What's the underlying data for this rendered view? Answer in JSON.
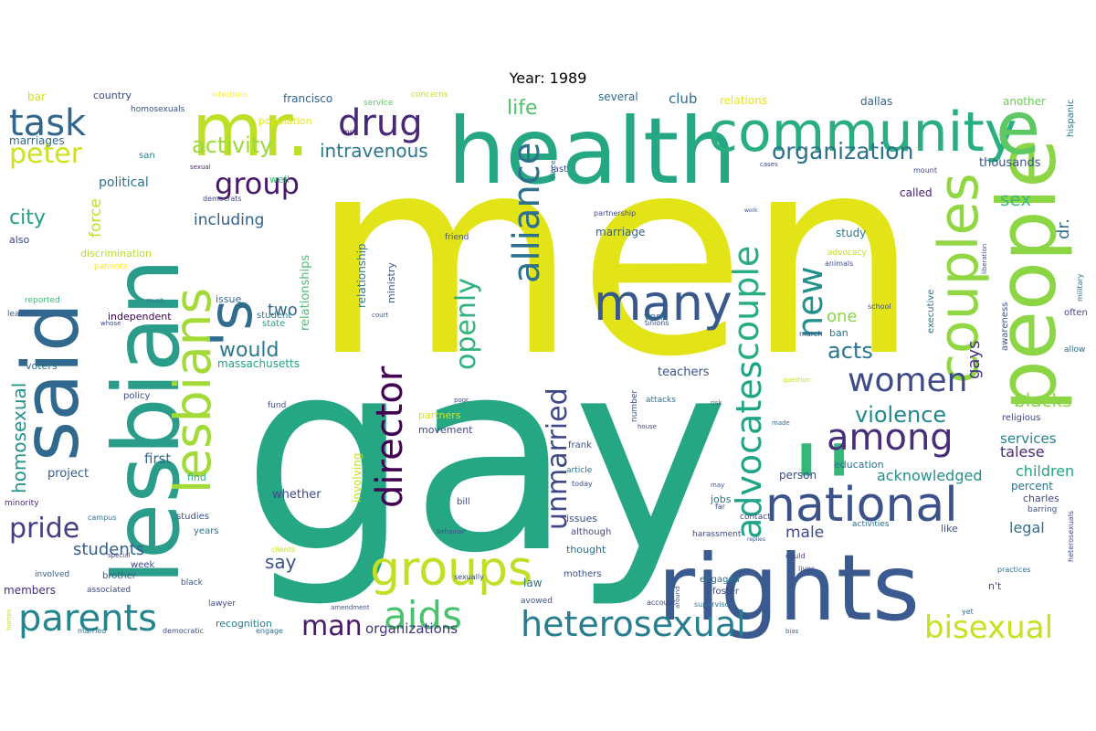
{
  "title": "Year: 1989",
  "palette": [
    "#440154",
    "#46337e",
    "#365c8d",
    "#277f8e",
    "#1fa187",
    "#4ac16d",
    "#a0da39",
    "#fde725"
  ],
  "words": [
    {
      "text": "men",
      "c": "#e3e418"
    },
    {
      "text": "gay",
      "c": "#26a784"
    },
    {
      "text": "lesbian",
      "c": "#2a9c8a"
    },
    {
      "text": "said",
      "c": "#31688e"
    },
    {
      "text": "health",
      "c": "#26a784"
    },
    {
      "text": "rights",
      "c": "#3b5a8f"
    },
    {
      "text": "people",
      "c": "#8cd646"
    },
    {
      "text": "community",
      "c": "#29af7f"
    },
    {
      "text": "e",
      "c": "#5ec962"
    },
    {
      "text": "mr.",
      "c": "#bddf26"
    },
    {
      "text": "'s",
      "c": "#2f6c8e"
    },
    {
      "text": "couples",
      "c": "#90d743"
    },
    {
      "text": "lesbians",
      "c": "#a2da37"
    },
    {
      "text": "national",
      "c": "#3b528b"
    },
    {
      "text": "groups",
      "c": "#c0df25"
    },
    {
      "text": "''",
      "c": "#35b779"
    },
    {
      "text": "many",
      "c": "#38598c"
    },
    {
      "text": "among",
      "c": "#472d7b"
    },
    {
      "text": "heterosexual",
      "c": "#287d8e"
    },
    {
      "text": "task",
      "c": "#31668e"
    },
    {
      "text": "parents",
      "c": "#25858e"
    },
    {
      "text": "aids",
      "c": "#4ac16d"
    },
    {
      "text": "drug",
      "c": "#482878"
    },
    {
      "text": "director",
      "c": "#440154"
    },
    {
      "text": "alliance",
      "c": "#2c728e"
    },
    {
      "text": "advocates",
      "c": "#20a486"
    },
    {
      "text": "couple",
      "c": "#27ad81"
    },
    {
      "text": "women",
      "c": "#3e4a89"
    },
    {
      "text": "bisexual",
      "c": "#c8e020"
    },
    {
      "text": "new",
      "c": "#21918c"
    },
    {
      "text": "man",
      "c": "#481a6c"
    },
    {
      "text": "peter",
      "c": "#d0e11c"
    },
    {
      "text": "group",
      "c": "#48186a"
    },
    {
      "text": "organization",
      "c": "#2d708e"
    },
    {
      "text": "unmarried",
      "c": "#3e4989"
    },
    {
      "text": "openly",
      "c": "#2fb47c"
    },
    {
      "text": "pride",
      "c": "#423f85"
    },
    {
      "text": "violence",
      "c": "#23898e"
    },
    {
      "text": "acts",
      "c": "#2a768e"
    },
    {
      "text": "activity",
      "c": "#9bd93c"
    },
    {
      "text": "intravenous",
      "c": "#2a788e"
    },
    {
      "text": "homosexual",
      "c": "#1f958b"
    },
    {
      "text": "life",
      "c": "#4ec36b"
    },
    {
      "text": "sex",
      "c": "#3bbb75"
    },
    {
      "text": "blacks",
      "c": "#8bd646"
    },
    {
      "text": "gays",
      "c": "#46327e"
    },
    {
      "text": "city",
      "c": "#1fa088"
    },
    {
      "text": "would",
      "c": "#2a788e"
    },
    {
      "text": "students",
      "c": "#34608d"
    },
    {
      "text": "including",
      "c": "#33638d"
    },
    {
      "text": "force",
      "c": "#c2df23"
    },
    {
      "text": "two",
      "c": "#31688e"
    },
    {
      "text": "one",
      "c": "#8bd646"
    },
    {
      "text": "say",
      "c": "#3b528b"
    },
    {
      "text": "male",
      "c": "#3e4989"
    },
    {
      "text": "legal",
      "c": "#2c728e"
    },
    {
      "text": "acknowledged",
      "c": "#21918c"
    },
    {
      "text": "talese",
      "c": "#482878"
    },
    {
      "text": "children",
      "c": "#20a386"
    },
    {
      "text": "services",
      "c": "#26828e"
    },
    {
      "text": "political",
      "c": "#2d718e"
    },
    {
      "text": "club",
      "c": "#2d708e"
    },
    {
      "text": "dr.",
      "c": "#2e6f8e"
    },
    {
      "text": "organizations",
      "c": "#46337e"
    },
    {
      "text": "first",
      "c": "#31688e"
    },
    {
      "text": "project",
      "c": "#355f8d"
    },
    {
      "text": "relationships",
      "c": "#4ac16d"
    },
    {
      "text": "relationship",
      "c": "#287c8e"
    },
    {
      "text": "ministry",
      "c": "#39568c"
    },
    {
      "text": "involving",
      "c": "#bddf26"
    },
    {
      "text": "whether",
      "c": "#3e4a89"
    },
    {
      "text": "marriage",
      "c": "#33638d"
    },
    {
      "text": "study",
      "c": "#29798e"
    },
    {
      "text": "called",
      "c": "#482071"
    },
    {
      "text": "thousands",
      "c": "#3b528b"
    },
    {
      "text": "bar",
      "c": "#d2e21b"
    },
    {
      "text": "marriages",
      "c": "#306a8e"
    },
    {
      "text": "country",
      "c": "#3f4788"
    },
    {
      "text": "francisco",
      "c": "#33638d"
    },
    {
      "text": "several",
      "c": "#2e6e8e"
    },
    {
      "text": "dallas",
      "c": "#32648e"
    },
    {
      "text": "another",
      "c": "#6ccd5a"
    },
    {
      "text": "hispanic",
      "c": "#2c728e"
    },
    {
      "text": "relations",
      "c": "#e5e419"
    },
    {
      "text": "concerns",
      "c": "#c8e020"
    },
    {
      "text": "service",
      "c": "#5cc863"
    },
    {
      "text": "infections",
      "c": "#fde725"
    },
    {
      "text": "homosexuals",
      "c": "#3b528b"
    },
    {
      "text": "population",
      "c": "#e2e418"
    },
    {
      "text": "ms.",
      "c": "#46085c"
    },
    {
      "text": "san",
      "c": "#26828e"
    },
    {
      "text": "sexual",
      "c": "#482878"
    },
    {
      "text": "well",
      "c": "#3dbc74"
    },
    {
      "text": "democrats",
      "c": "#404688"
    },
    {
      "text": "also",
      "c": "#3e4989"
    },
    {
      "text": "discrimination",
      "c": "#b5de2b"
    },
    {
      "text": "patients",
      "c": "#fde725"
    },
    {
      "text": "much",
      "c": "#2c728e"
    },
    {
      "text": "reported",
      "c": "#3bbb75"
    },
    {
      "text": "leaders",
      "c": "#375b8d"
    },
    {
      "text": "whose",
      "c": "#3e4989"
    },
    {
      "text": "independent",
      "c": "#440154"
    },
    {
      "text": "issue",
      "c": "#31688e"
    },
    {
      "text": "student",
      "c": "#287d8e"
    },
    {
      "text": "state",
      "c": "#1fa187"
    },
    {
      "text": "massachusetts",
      "c": "#20a486"
    },
    {
      "text": "voters",
      "c": "#2c738e"
    },
    {
      "text": "policy",
      "c": "#3e4989"
    },
    {
      "text": "fund",
      "c": "#3e4989"
    },
    {
      "text": "partners",
      "c": "#d8e219"
    },
    {
      "text": "movement",
      "c": "#3e4989"
    },
    {
      "text": "find",
      "c": "#29af7f"
    },
    {
      "text": "minority",
      "c": "#472c7a"
    },
    {
      "text": "campus",
      "c": "#2c728e"
    },
    {
      "text": "studies",
      "c": "#3b528b"
    },
    {
      "text": "years",
      "c": "#2c738e"
    },
    {
      "text": "special",
      "c": "#3e4989"
    },
    {
      "text": "week",
      "c": "#3e4989"
    },
    {
      "text": "brother",
      "c": "#355f8d"
    },
    {
      "text": "involved",
      "c": "#355f8d"
    },
    {
      "text": "associated",
      "c": "#3e4989"
    },
    {
      "text": "black",
      "c": "#3b528b"
    },
    {
      "text": "members",
      "c": "#472d7b"
    },
    {
      "text": "lawyer",
      "c": "#3e4989"
    },
    {
      "text": "recognition",
      "c": "#287d8e"
    },
    {
      "text": "engage",
      "c": "#2c728e"
    },
    {
      "text": "democratic",
      "c": "#3b528b"
    },
    {
      "text": "married",
      "c": "#2c728e"
    },
    {
      "text": "homes",
      "c": "#c8e020"
    },
    {
      "text": "amendment",
      "c": "#3b528b"
    },
    {
      "text": "sexually",
      "c": "#3e4989"
    },
    {
      "text": "clients",
      "c": "#c8e020"
    },
    {
      "text": "bill",
      "c": "#3e4989"
    },
    {
      "text": "issues",
      "c": "#3b528b"
    },
    {
      "text": "although",
      "c": "#3e4989"
    },
    {
      "text": "thought",
      "c": "#2c728e"
    },
    {
      "text": "mothers",
      "c": "#3b528b"
    },
    {
      "text": "law",
      "c": "#2c728e"
    },
    {
      "text": "avowed",
      "c": "#3b528b"
    },
    {
      "text": "york",
      "c": "#2c728e"
    },
    {
      "text": "unions",
      "c": "#3e4989"
    },
    {
      "text": "teachers",
      "c": "#3b528b"
    },
    {
      "text": "march",
      "c": "#3e4989"
    },
    {
      "text": "ban",
      "c": "#2c728e"
    },
    {
      "text": "school",
      "c": "#3e4989"
    },
    {
      "text": "advocacy",
      "c": "#c8e020"
    },
    {
      "text": "animals",
      "c": "#3b528b"
    },
    {
      "text": "executive",
      "c": "#2c728e"
    },
    {
      "text": "awareness",
      "c": "#3b528b"
    },
    {
      "text": "often",
      "c": "#3e4989"
    },
    {
      "text": "allow",
      "c": "#2c728e"
    },
    {
      "text": "friend",
      "c": "#3b528b"
    },
    {
      "text": "partnership",
      "c": "#3e4989"
    },
    {
      "text": "since",
      "c": "#2c728e"
    },
    {
      "text": "last",
      "c": "#3e4989"
    },
    {
      "text": "court",
      "c": "#3b528b"
    },
    {
      "text": "question",
      "c": "#c8e020"
    },
    {
      "text": "poor",
      "c": "#3e4989"
    },
    {
      "text": "number",
      "c": "#3b528b"
    },
    {
      "text": "attacks",
      "c": "#2c728e"
    },
    {
      "text": "house",
      "c": "#3e4989"
    },
    {
      "text": "risk",
      "c": "#3b528b"
    },
    {
      "text": "made",
      "c": "#2c728e"
    },
    {
      "text": "religious",
      "c": "#3e4989"
    },
    {
      "text": "frank",
      "c": "#3b528b"
    },
    {
      "text": "article",
      "c": "#2c728e"
    },
    {
      "text": "today",
      "c": "#3e4989"
    },
    {
      "text": "education",
      "c": "#2c728e"
    },
    {
      "text": "person",
      "c": "#3e4989"
    },
    {
      "text": "percent",
      "c": "#2c728e"
    },
    {
      "text": "charles",
      "c": "#3e4989"
    },
    {
      "text": "barring",
      "c": "#3b528b"
    },
    {
      "text": "heterosexuals",
      "c": "#3e4989"
    },
    {
      "text": "jobs",
      "c": "#2c728e"
    },
    {
      "text": "far",
      "c": "#3e4989"
    },
    {
      "text": "may",
      "c": "#3b528b"
    },
    {
      "text": "contact",
      "c": "#3e4989"
    },
    {
      "text": "activities",
      "c": "#2c728e"
    },
    {
      "text": "harassment",
      "c": "#3e4989"
    },
    {
      "text": "engaged",
      "c": "#2c728e"
    },
    {
      "text": "foster",
      "c": "#3e4989"
    },
    {
      "text": "like",
      "c": "#3b528b"
    },
    {
      "text": "could",
      "c": "#3e4989"
    },
    {
      "text": "practices",
      "c": "#2c728e"
    },
    {
      "text": "n't",
      "c": "#3e4989"
    },
    {
      "text": "use",
      "c": "#3b528b"
    },
    {
      "text": "yet",
      "c": "#2c728e"
    },
    {
      "text": "lives",
      "c": "#3e4989"
    },
    {
      "text": "replies",
      "c": "#3b528b"
    },
    {
      "text": "account",
      "c": "#3e4989"
    },
    {
      "text": "supervisor",
      "c": "#2c728e"
    },
    {
      "text": "around",
      "c": "#3b528b"
    },
    {
      "text": "behavior",
      "c": "#3e4989"
    },
    {
      "text": "bias",
      "c": "#2c728e"
    },
    {
      "text": "mount",
      "c": "#3e4989"
    },
    {
      "text": "liberation",
      "c": "#3b528b"
    },
    {
      "text": "military",
      "c": "#2c728e"
    },
    {
      "text": "cases",
      "c": "#3e4989"
    },
    {
      "text": "work",
      "c": "#3b528b"
    }
  ]
}
